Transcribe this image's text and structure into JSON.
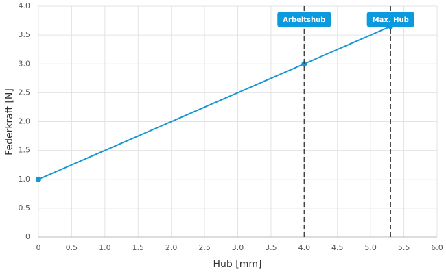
{
  "chart_data": {
    "type": "line",
    "x_label": "Hub [mm]",
    "y_label": "Federkraft [N]",
    "x": [
      0,
      4,
      5.3
    ],
    "series": [
      {
        "color": "#1896d2",
        "values": [
          1,
          3,
          3.65
        ]
      }
    ],
    "xlim": [
      0,
      6
    ],
    "ylim": [
      0,
      4
    ],
    "xticks": [
      0,
      0.5,
      {
        "value": 1,
        "label": "1.0"
      },
      1.5,
      {
        "value": 2,
        "label": "2.0"
      },
      2.5,
      {
        "value": 3,
        "label": "3.0"
      },
      3.5,
      {
        "value": 4,
        "label": "4.0"
      },
      4.5,
      {
        "value": 5,
        "label": "5.0"
      },
      5.5,
      {
        "value": 6,
        "label": "6.0"
      }
    ],
    "yticks": [
      0,
      0.5,
      {
        "value": 1,
        "label": "1.0"
      },
      1.5,
      {
        "value": 2,
        "label": "2.0"
      },
      2.5,
      {
        "value": 3,
        "label": "3.0"
      },
      3.5,
      {
        "value": 4,
        "label": "4.0"
      }
    ],
    "grid": true,
    "annotations": [
      {
        "x": 4,
        "label": "Arbeitshub"
      },
      {
        "x": 5.3,
        "label": "Max. Hub"
      }
    ],
    "annotation_color": "#0b9ade"
  }
}
